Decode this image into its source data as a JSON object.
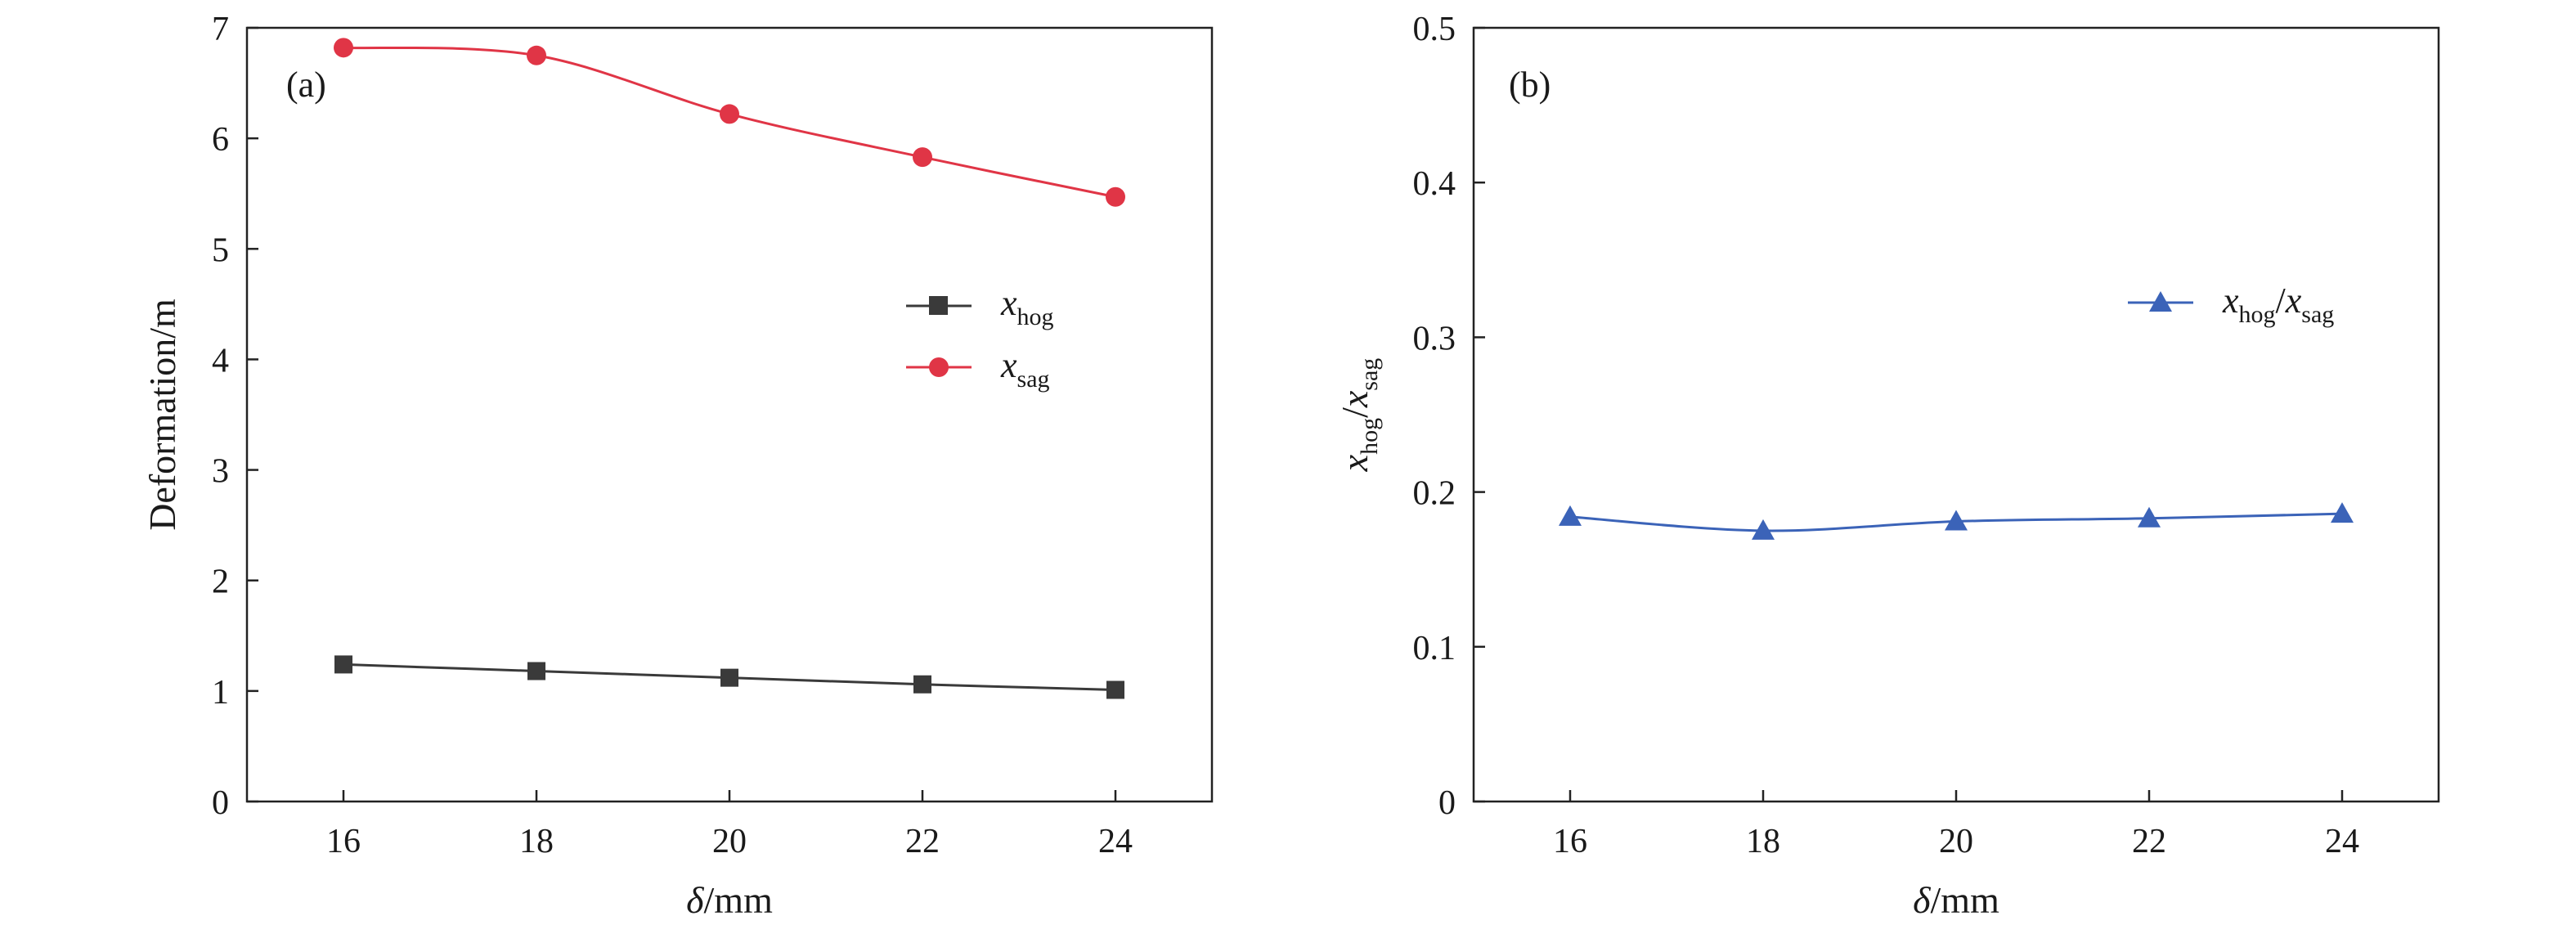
{
  "chart_data": [
    {
      "type": "line",
      "panel_label": "(a)",
      "x": [
        16,
        18,
        20,
        22,
        24
      ],
      "xlim": [
        15,
        25
      ],
      "xticks": [
        16,
        18,
        20,
        22,
        24
      ],
      "ylim": [
        0,
        7
      ],
      "yticks": [
        0,
        1,
        2,
        3,
        4,
        5,
        6,
        7
      ],
      "xlabel": {
        "symbol": "δ",
        "unit": "/mm"
      },
      "ylabel": "Deformation/m",
      "legend_position": "center-right",
      "series": [
        {
          "name": "x",
          "subscript": "hog",
          "color": "#3a3a3a",
          "marker": "square",
          "values": [
            1.24,
            1.18,
            1.12,
            1.06,
            1.01
          ]
        },
        {
          "name": "x",
          "subscript": "sag",
          "color": "#e03546",
          "marker": "circle",
          "values": [
            6.82,
            6.75,
            6.22,
            5.83,
            5.47
          ]
        }
      ]
    },
    {
      "type": "line",
      "panel_label": "(b)",
      "x": [
        16,
        18,
        20,
        22,
        24
      ],
      "xlim": [
        15,
        25
      ],
      "xticks": [
        16,
        18,
        20,
        22,
        24
      ],
      "ylim": [
        0,
        0.5
      ],
      "yticks": [
        0,
        0.1,
        0.2,
        0.3,
        0.4,
        0.5
      ],
      "ytick_labels": [
        "0",
        "0.1",
        "0.2",
        "0.3",
        "0.4",
        "0.5"
      ],
      "xlabel": {
        "symbol": "δ",
        "unit": "/mm"
      },
      "ylabel": {
        "num": "x",
        "num_sub": "hog",
        "den": "x",
        "den_sub": "sag"
      },
      "legend_position": "top-right",
      "series": [
        {
          "name": "x_hog/x_sag",
          "label_num": "x",
          "label_num_sub": "hog",
          "label_den": "x",
          "label_den_sub": "sag",
          "color": "#3b63b8",
          "marker": "triangle",
          "values": [
            0.184,
            0.175,
            0.181,
            0.183,
            0.186
          ]
        }
      ]
    }
  ]
}
